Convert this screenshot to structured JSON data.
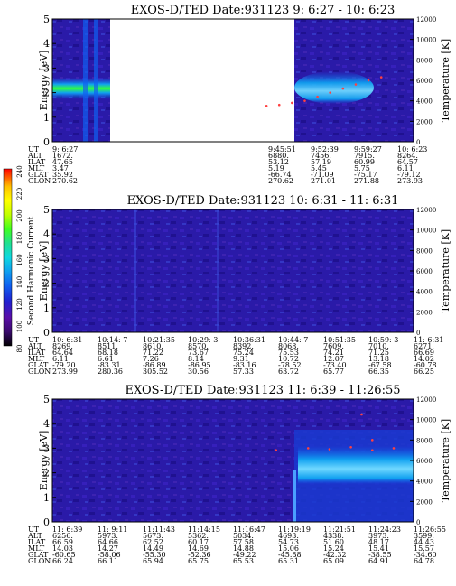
{
  "colors": {
    "background": "#ffffff",
    "plot_fill": "#2a1aa8",
    "plot_fill_dark": "#1a0d7a",
    "colorbar": [
      "#000000",
      "#3a0a6e",
      "#5a0fa8",
      "#2020d0",
      "#1060f0",
      "#10a0f0",
      "#10d8e0",
      "#20e090",
      "#40ff20",
      "#c0ff00",
      "#ffff00",
      "#ffc000",
      "#ff6000",
      "#ff0000"
    ]
  },
  "colorbar": {
    "label": "Second Harmonic Current",
    "ticks": [
      "80",
      "100",
      "120",
      "140",
      "160",
      "180",
      "200",
      "220",
      "240"
    ]
  },
  "chart_data": [
    {
      "type": "heatmap",
      "title": "EXOS-D/TED   Date:931123   9: 6:27 - 10: 6:23",
      "ylabel": "Energy [eV]",
      "y2label": "Temperature [K]",
      "ylim": [
        0,
        5
      ],
      "y2lim": [
        0,
        12000
      ],
      "yticks": [
        "0",
        "1",
        "2",
        "3",
        "4",
        "5"
      ],
      "y2ticks": [
        "0",
        "2000",
        "4000",
        "6000",
        "8000",
        "10000",
        "12000"
      ],
      "data_gap": "white region with no data between ~9:15 and 9:45",
      "features": [
        "bright green band near 2.2 eV at start",
        "bright emission near 2.3–2.8 eV around 9:52–10:00",
        "temperature points rising from ~3500 K to ~6500 K"
      ],
      "info_table": {
        "row_labels": [
          "UT",
          "ALT",
          "ILAT",
          "MLT",
          "GLAT",
          "GLON"
        ],
        "columns": [
          [
            "9: 6:27",
            "1672.",
            "47.65",
            "3.47",
            "35.92",
            "270.62"
          ],
          [
            "9:45:51",
            "6880.",
            "53.12",
            "5.19",
            "-66.74",
            "270.62"
          ],
          [
            "9:52:39",
            "7456.",
            "57.19",
            "5.45",
            "-71.09",
            "271.01"
          ],
          [
            "9:59:27",
            "7915.",
            "60.99",
            "5.75",
            "-75.17",
            "271.88"
          ],
          [
            "10: 6:23",
            "8264.",
            "64.57",
            "6.11",
            "-79.12",
            "273.93"
          ]
        ]
      },
      "temperature_points": [
        [
          9.76,
          3500
        ],
        [
          9.79,
          3600
        ],
        [
          9.82,
          3800
        ],
        [
          9.85,
          4000
        ],
        [
          9.88,
          4400
        ],
        [
          9.91,
          4800
        ],
        [
          9.94,
          5200
        ],
        [
          9.97,
          5600
        ],
        [
          10.0,
          6000
        ],
        [
          10.03,
          6300
        ]
      ]
    },
    {
      "type": "heatmap",
      "title": "EXOS-D/TED   Date:931123  10: 6:31 - 11: 6:31",
      "ylabel": "Energy [eV]",
      "y2label": "Temperature [K]",
      "ylim": [
        0,
        5
      ],
      "y2lim": [
        0,
        12000
      ],
      "yticks": [
        "0",
        "1",
        "2",
        "3",
        "4",
        "5"
      ],
      "y2ticks": [
        "0",
        "2000",
        "4000",
        "6000",
        "8000",
        "10000",
        "12000"
      ],
      "features": [
        "uniform low-level (blue/purple) background, no strong band"
      ],
      "info_table": {
        "row_labels": [
          "UT",
          "ALT",
          "ILAT",
          "MLT",
          "GLAT",
          "GLON"
        ],
        "columns": [
          [
            "10: 6:31",
            "8269.",
            "64.64",
            "6.11",
            "-79.20",
            "273.99"
          ],
          [
            "10:14: 7",
            "8511.",
            "68.18",
            "6.61",
            "-83.31",
            "280.36"
          ],
          [
            "10:21:35",
            "8610.",
            "71.22",
            "7.26",
            "-86.89",
            "305.52"
          ],
          [
            "10:29: 3",
            "8570.",
            "73.67",
            "8.14",
            "-86.95",
            "30.56"
          ],
          [
            "10:36:31",
            "8392.",
            "75.24",
            "9.31",
            "-83.16",
            "57.33"
          ],
          [
            "10:44: 7",
            "8068.",
            "75.53",
            "10.72",
            "-78.52",
            "63.72"
          ],
          [
            "10:51:35",
            "7609.",
            "74.21",
            "12.07",
            "-73.40",
            "65.77"
          ],
          [
            "10:59: 3",
            "7010.",
            "71.25",
            "13.18",
            "-67.58",
            "66.35"
          ],
          [
            "11: 6:31",
            "6271.",
            "66.69",
            "14.02",
            "-60.78",
            "66.25"
          ]
        ]
      }
    },
    {
      "type": "heatmap",
      "title": "EXOS-D/TED   Date:931123  11: 6:39 - 11:26:55",
      "ylabel": "Energy [eV]",
      "y2label": "Temperature [K]",
      "ylim": [
        0,
        5
      ],
      "y2lim": [
        0,
        12000
      ],
      "yticks": [
        "0",
        "1",
        "2",
        "3",
        "4",
        "5"
      ],
      "y2ticks": [
        "0",
        "2000",
        "4000",
        "6000",
        "8000",
        "10000",
        "12000"
      ],
      "features": [
        "enhanced light-blue band near 2.0–2.8 eV after ~11:19",
        "temperature points ~6500–7500 K near 11:19–11:25"
      ],
      "info_table": {
        "row_labels": [
          "UT",
          "ALT",
          "ILAT",
          "MLT",
          "GLAT",
          "GLON"
        ],
        "columns": [
          [
            "11: 6:39",
            "6256.",
            "66.59",
            "14.03",
            "-60.65",
            "66.24"
          ],
          [
            "11: 9:11",
            "5973.",
            "64.66",
            "14.27",
            "-58.06",
            "66.11"
          ],
          [
            "11:11:43",
            "5673.",
            "62.52",
            "14.49",
            "-55.30",
            "65.94"
          ],
          [
            "11:14:15",
            "5362.",
            "60.17",
            "14.69",
            "-52.36",
            "65.75"
          ],
          [
            "11:16:47",
            "5034.",
            "57.58",
            "14.88",
            "-49.22",
            "65.53"
          ],
          [
            "11:19:19",
            "4693.",
            "54.73",
            "15.06",
            "-45.88",
            "65.31"
          ],
          [
            "11:21:51",
            "4338.",
            "51.60",
            "15.24",
            "-42.32",
            "65.09"
          ],
          [
            "11:24:23",
            "3973.",
            "48.17",
            "15.41",
            "-38.55",
            "64.91"
          ],
          [
            "11:26:55",
            "3599.",
            "44.43",
            "15.57",
            "-34.60",
            "64.78"
          ]
        ]
      },
      "temperature_points": [
        [
          11.32,
          7000
        ],
        [
          11.35,
          7200
        ],
        [
          11.37,
          7100
        ],
        [
          11.39,
          7300
        ],
        [
          11.41,
          7000
        ],
        [
          11.43,
          7200
        ],
        [
          11.41,
          8000
        ],
        [
          11.4,
          10500
        ]
      ]
    }
  ]
}
